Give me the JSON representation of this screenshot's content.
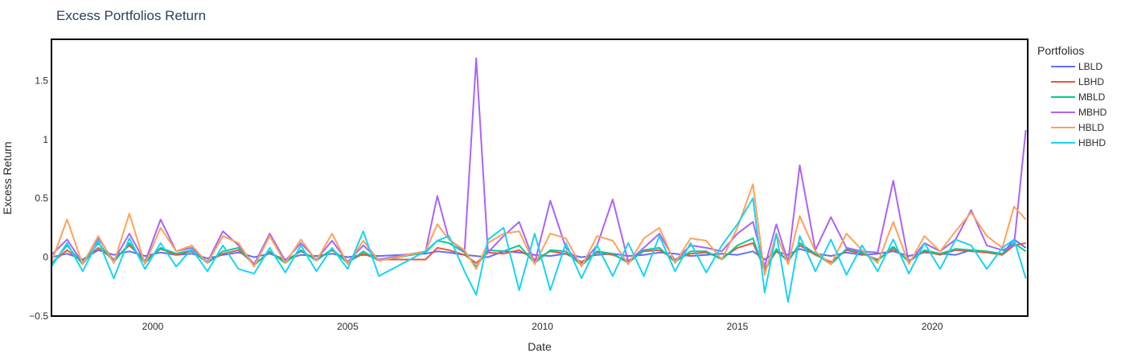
{
  "chart_data": {
    "type": "line",
    "title": "Excess Portfolios Return",
    "xlabel": "Date",
    "ylabel": "Excess Return",
    "xlim": [
      1997.4,
      2022.45
    ],
    "ylim": [
      -0.5,
      1.85
    ],
    "x_ticks": [
      "2000",
      "2005",
      "2010",
      "2015",
      "2020"
    ],
    "y_ticks": [
      "−0.5",
      "0",
      "0.5",
      "1",
      "1.5"
    ],
    "legend": {
      "title": "Portfolios",
      "position": "right"
    },
    "grid": false,
    "x": [
      1997.4,
      1997.8,
      1998.2,
      1998.6,
      1999.0,
      1999.4,
      1999.8,
      2000.2,
      2000.6,
      2001.0,
      2001.4,
      2001.8,
      2002.2,
      2002.6,
      2003.0,
      2003.4,
      2003.8,
      2004.2,
      2004.6,
      2005.0,
      2005.4,
      2005.8,
      2007.0,
      2007.3,
      2007.6,
      2008.0,
      2008.3,
      2008.6,
      2009.0,
      2009.4,
      2009.8,
      2010.2,
      2010.6,
      2011.0,
      2011.4,
      2011.8,
      2012.2,
      2012.6,
      2013.0,
      2013.4,
      2013.8,
      2014.2,
      2014.6,
      2015.0,
      2015.4,
      2015.7,
      2016.0,
      2016.3,
      2016.6,
      2017.0,
      2017.4,
      2017.8,
      2018.2,
      2018.6,
      2019.0,
      2019.4,
      2019.8,
      2020.2,
      2020.6,
      2021.0,
      2021.4,
      2021.8,
      2022.1,
      2022.4
    ],
    "series": [
      {
        "name": "LBLD",
        "color": "#636efa",
        "values": [
          0.0,
          0.03,
          -0.02,
          0.06,
          0.02,
          0.05,
          0.01,
          0.04,
          0.02,
          0.03,
          -0.01,
          0.02,
          0.04,
          0.0,
          0.03,
          -0.02,
          0.02,
          0.01,
          0.03,
          0.0,
          0.02,
          0.01,
          0.03,
          0.05,
          0.04,
          0.02,
          0.01,
          0.0,
          0.05,
          0.04,
          0.02,
          0.01,
          0.03,
          0.0,
          0.02,
          0.03,
          0.01,
          0.02,
          0.04,
          0.03,
          0.01,
          0.02,
          0.03,
          0.02,
          0.05,
          -0.02,
          0.05,
          0.02,
          0.07,
          0.03,
          0.01,
          0.04,
          0.02,
          0.03,
          0.05,
          0.01,
          0.04,
          0.03,
          0.02,
          0.06,
          0.04,
          0.03,
          0.15,
          0.08
        ]
      },
      {
        "name": "LBHD",
        "color": "#ef553b",
        "values": [
          -0.05,
          0.06,
          -0.04,
          0.08,
          -0.02,
          0.1,
          -0.03,
          0.07,
          0.02,
          0.05,
          -0.04,
          0.03,
          0.06,
          -0.06,
          0.04,
          -0.03,
          0.05,
          -0.02,
          0.06,
          -0.04,
          0.03,
          -0.02,
          -0.02,
          0.08,
          0.06,
          0.02,
          -0.05,
          0.04,
          0.03,
          0.06,
          -0.02,
          0.05,
          0.03,
          -0.04,
          0.04,
          0.02,
          -0.03,
          0.05,
          0.06,
          -0.02,
          0.03,
          0.04,
          -0.01,
          0.08,
          0.12,
          -0.1,
          0.05,
          -0.03,
          0.1,
          0.02,
          -0.04,
          0.06,
          0.03,
          -0.02,
          0.07,
          -0.03,
          0.05,
          0.02,
          0.06,
          0.05,
          0.04,
          0.02,
          0.1,
          0.12
        ]
      },
      {
        "name": "MBLD",
        "color": "#00cc96",
        "values": [
          -0.06,
          0.1,
          -0.06,
          0.12,
          -0.04,
          0.12,
          -0.05,
          0.08,
          0.03,
          0.06,
          -0.05,
          0.05,
          0.08,
          -0.07,
          0.05,
          -0.05,
          0.06,
          -0.03,
          0.07,
          -0.05,
          0.05,
          -0.03,
          0.04,
          0.14,
          0.12,
          0.04,
          -0.08,
          0.06,
          0.05,
          0.1,
          -0.05,
          0.06,
          0.05,
          -0.07,
          0.05,
          0.03,
          -0.05,
          0.06,
          0.08,
          -0.04,
          0.05,
          0.05,
          -0.02,
          0.1,
          0.16,
          -0.12,
          0.07,
          -0.04,
          0.12,
          0.03,
          -0.06,
          0.07,
          0.04,
          -0.03,
          0.09,
          -0.04,
          0.06,
          0.03,
          0.07,
          0.06,
          0.05,
          0.03,
          0.12,
          0.05
        ]
      },
      {
        "name": "MBHD",
        "color": "#ab63fa",
        "values": [
          0.02,
          0.15,
          -0.05,
          0.16,
          -0.03,
          0.2,
          -0.04,
          0.32,
          0.05,
          0.08,
          -0.04,
          0.22,
          0.1,
          -0.06,
          0.2,
          -0.03,
          0.12,
          -0.02,
          0.14,
          -0.04,
          0.1,
          -0.02,
          0.05,
          0.52,
          0.15,
          0.05,
          1.69,
          0.04,
          0.18,
          0.3,
          -0.05,
          0.48,
          0.08,
          -0.06,
          0.1,
          0.49,
          -0.04,
          0.08,
          0.2,
          -0.03,
          0.1,
          0.08,
          0.05,
          0.2,
          0.3,
          -0.08,
          0.28,
          -0.04,
          0.78,
          0.06,
          0.34,
          0.08,
          0.05,
          0.04,
          0.65,
          -0.05,
          0.12,
          0.05,
          0.15,
          0.4,
          0.1,
          0.06,
          0.1,
          1.08
        ]
      },
      {
        "name": "HBLD",
        "color": "#ffa15a",
        "values": [
          -0.04,
          0.32,
          -0.06,
          0.18,
          -0.05,
          0.37,
          -0.06,
          0.25,
          0.05,
          0.1,
          -0.05,
          0.18,
          0.12,
          -0.08,
          0.18,
          -0.05,
          0.15,
          -0.03,
          0.2,
          -0.06,
          0.14,
          -0.03,
          0.05,
          0.28,
          0.15,
          0.06,
          -0.1,
          0.12,
          0.2,
          0.22,
          -0.06,
          0.2,
          0.16,
          -0.08,
          0.18,
          0.14,
          -0.06,
          0.16,
          0.25,
          -0.05,
          0.16,
          0.14,
          -0.02,
          0.25,
          0.62,
          -0.15,
          0.2,
          -0.06,
          0.35,
          0.05,
          -0.06,
          0.2,
          0.06,
          -0.05,
          0.3,
          -0.06,
          0.18,
          0.05,
          0.22,
          0.38,
          0.18,
          0.08,
          0.43,
          0.32
        ]
      },
      {
        "name": "HBHD",
        "color": "#19d3f3",
        "values": [
          -0.08,
          0.12,
          -0.12,
          0.14,
          -0.18,
          0.16,
          -0.1,
          0.12,
          -0.08,
          0.07,
          -0.12,
          0.1,
          -0.1,
          -0.14,
          0.08,
          -0.13,
          0.1,
          -0.12,
          0.08,
          -0.1,
          0.22,
          -0.16,
          0.05,
          0.14,
          0.18,
          -0.12,
          -0.32,
          0.15,
          0.25,
          -0.28,
          0.2,
          -0.28,
          0.12,
          -0.18,
          0.1,
          -0.16,
          0.12,
          -0.16,
          0.18,
          -0.12,
          0.12,
          -0.13,
          0.1,
          0.28,
          0.5,
          -0.3,
          0.2,
          -0.38,
          0.18,
          -0.12,
          0.15,
          -0.15,
          0.1,
          -0.12,
          0.15,
          -0.14,
          0.12,
          -0.1,
          0.15,
          0.1,
          -0.1,
          0.08,
          0.15,
          -0.18
        ]
      }
    ]
  }
}
